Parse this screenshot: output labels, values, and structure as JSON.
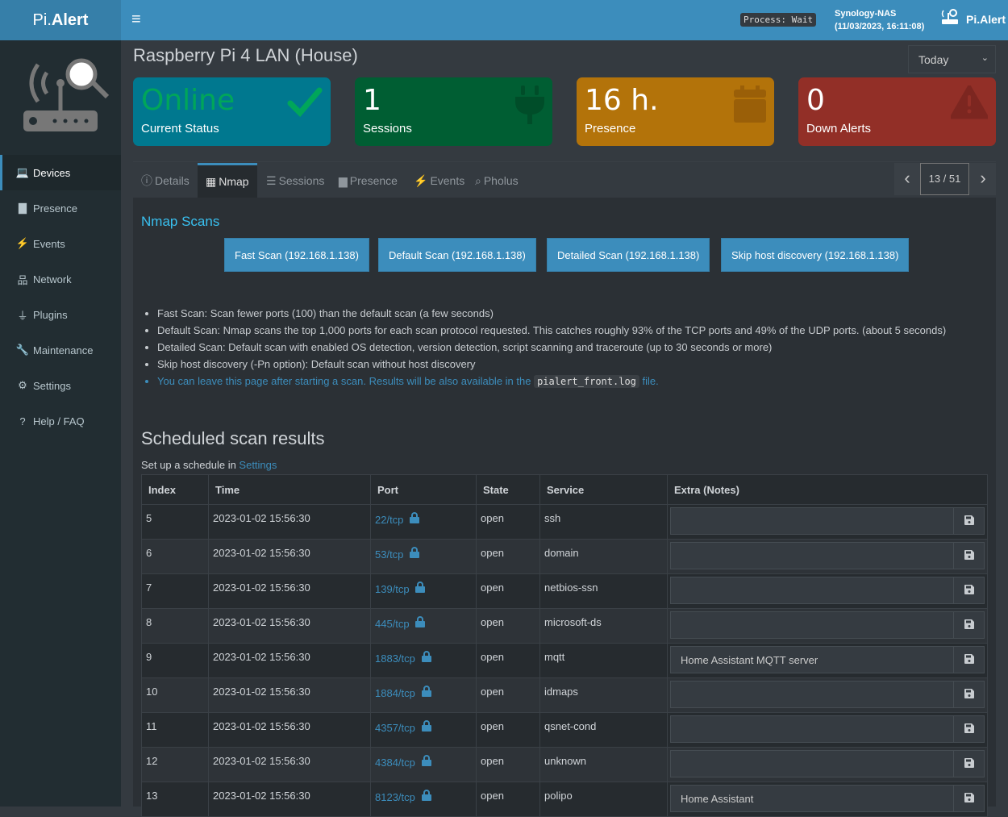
{
  "header": {
    "brand_a": "Pi.",
    "brand_b": "Alert",
    "process": "Process: Wait",
    "host": "Synology-NAS",
    "datetime": "(11/03/2023, 16:11:08)",
    "app_name": "Pi.Alert"
  },
  "sidebar": {
    "items": [
      {
        "label": "Devices",
        "icon": "laptop-icon",
        "glyph": "💻"
      },
      {
        "label": "Presence",
        "icon": "calendar-icon",
        "glyph": "▇"
      },
      {
        "label": "Events",
        "icon": "bolt-icon",
        "glyph": "⚡"
      },
      {
        "label": "Network",
        "icon": "sitemap-icon",
        "glyph": "品"
      },
      {
        "label": "Plugins",
        "icon": "plug-icon",
        "glyph": "⏚"
      },
      {
        "label": "Maintenance",
        "icon": "wrench-icon",
        "glyph": "🔧"
      },
      {
        "label": "Settings",
        "icon": "gear-icon",
        "glyph": "⚙"
      },
      {
        "label": "Help / FAQ",
        "icon": "question-icon",
        "glyph": "?"
      }
    ]
  },
  "page": {
    "title": "Raspberry Pi 4 LAN (House)",
    "period": "Today"
  },
  "cards": [
    {
      "value": "Online",
      "label": "Current Status",
      "color": "#00788f",
      "value_color": "#00a65a"
    },
    {
      "value": "1",
      "label": "Sessions",
      "color": "#005e33"
    },
    {
      "value": "16 h.",
      "label": "Presence",
      "color": "#b3730a"
    },
    {
      "value": "0",
      "label": "Down Alerts",
      "color": "#922f27"
    }
  ],
  "tabs": [
    {
      "label": "Details",
      "glyph": "ⓘ"
    },
    {
      "label": "Nmap",
      "glyph": "▦"
    },
    {
      "label": "Sessions",
      "glyph": "☰"
    },
    {
      "label": "Presence",
      "glyph": "▆"
    },
    {
      "label": "Events",
      "glyph": "⚡"
    },
    {
      "label": "Pholus",
      "glyph": "⌕"
    }
  ],
  "pager": {
    "text": "13 / 51",
    "prev": "‹",
    "next": "›"
  },
  "nmap": {
    "title": "Nmap Scans",
    "buttons": [
      "Fast Scan (192.168.1.138)",
      "Default Scan (192.168.1.138)",
      "Detailed Scan (192.168.1.138)",
      "Skip host discovery (192.168.1.138)"
    ],
    "notes": [
      "Fast Scan: Scan fewer ports (100) than the default scan (a few seconds)",
      "Default Scan: Nmap scans the top 1,000 ports for each scan protocol requested. This catches roughly 93% of the TCP ports and 49% of the UDP ports. (about 5 seconds)",
      "Detailed Scan: Default scan with enabled OS detection, version detection, script scanning and traceroute (up to 30 seconds or more)",
      "Skip host discovery (-Pn option): Default scan without host discovery"
    ],
    "info_pre": "You can leave this page after starting a scan. Results will be also available in the ",
    "info_code": "pialert_front.log",
    "info_post": " file."
  },
  "scheduled": {
    "title": "Scheduled scan results",
    "setup_pre": "Set up a schedule in ",
    "setup_link": "Settings",
    "columns": [
      "Index",
      "Time",
      "Port",
      "State",
      "Service",
      "Extra (Notes)"
    ],
    "rows": [
      {
        "index": "5",
        "time": "2023-01-02 15:56:30",
        "port": "22/tcp",
        "state": "open",
        "service": "ssh",
        "notes": ""
      },
      {
        "index": "6",
        "time": "2023-01-02 15:56:30",
        "port": "53/tcp",
        "state": "open",
        "service": "domain",
        "notes": ""
      },
      {
        "index": "7",
        "time": "2023-01-02 15:56:30",
        "port": "139/tcp",
        "state": "open",
        "service": "netbios-ssn",
        "notes": ""
      },
      {
        "index": "8",
        "time": "2023-01-02 15:56:30",
        "port": "445/tcp",
        "state": "open",
        "service": "microsoft-ds",
        "notes": ""
      },
      {
        "index": "9",
        "time": "2023-01-02 15:56:30",
        "port": "1883/tcp",
        "state": "open",
        "service": "mqtt",
        "notes": "Home Assistant MQTT server"
      },
      {
        "index": "10",
        "time": "2023-01-02 15:56:30",
        "port": "1884/tcp",
        "state": "open",
        "service": "idmaps",
        "notes": ""
      },
      {
        "index": "11",
        "time": "2023-01-02 15:56:30",
        "port": "4357/tcp",
        "state": "open",
        "service": "qsnet-cond",
        "notes": ""
      },
      {
        "index": "12",
        "time": "2023-01-02 15:56:30",
        "port": "4384/tcp",
        "state": "open",
        "service": "unknown",
        "notes": ""
      },
      {
        "index": "13",
        "time": "2023-01-02 15:56:30",
        "port": "8123/tcp",
        "state": "open",
        "service": "polipo",
        "notes": "Home Assistant"
      }
    ]
  }
}
